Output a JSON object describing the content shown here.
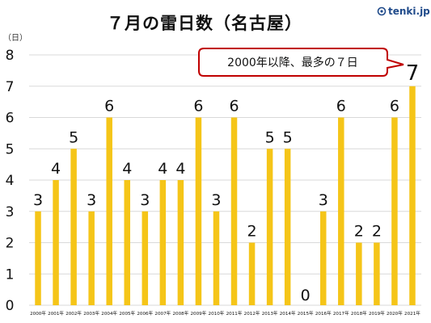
{
  "brand": "tenki.jp",
  "colors": {
    "bar": "#F5C518",
    "grid": "#d9d9d9",
    "callout_border": "#c00000"
  },
  "callout": "2000年以降、最多の７日",
  "chart_data": {
    "type": "bar",
    "title": "７月の雷日数（名古屋）",
    "ylabel": "（日）",
    "categories": [
      "2000年",
      "2001年",
      "2002年",
      "2003年",
      "2004年",
      "2005年",
      "2006年",
      "2007年",
      "2008年",
      "2009年",
      "2010年",
      "2011年",
      "2012年",
      "2013年",
      "2014年",
      "2015年",
      "2016年",
      "2017年",
      "2018年",
      "2019年",
      "2020年",
      "2021年"
    ],
    "values": [
      3,
      4,
      5,
      3,
      6,
      4,
      3,
      4,
      4,
      6,
      3,
      6,
      2,
      5,
      5,
      0,
      3,
      6,
      2,
      2,
      6,
      7
    ],
    "data_labels": [
      "3",
      "4",
      "5",
      "3",
      "6",
      "4",
      "3",
      "4",
      "4",
      "6",
      "3",
      "6",
      "2",
      "5",
      "5",
      "0",
      "3",
      "6",
      "2",
      "2",
      "6",
      "7"
    ],
    "yticks": [
      "0",
      "1",
      "2",
      "3",
      "4",
      "5",
      "6",
      "7",
      "8"
    ],
    "ylim": [
      0,
      8
    ],
    "grid": true,
    "legend": "none"
  }
}
